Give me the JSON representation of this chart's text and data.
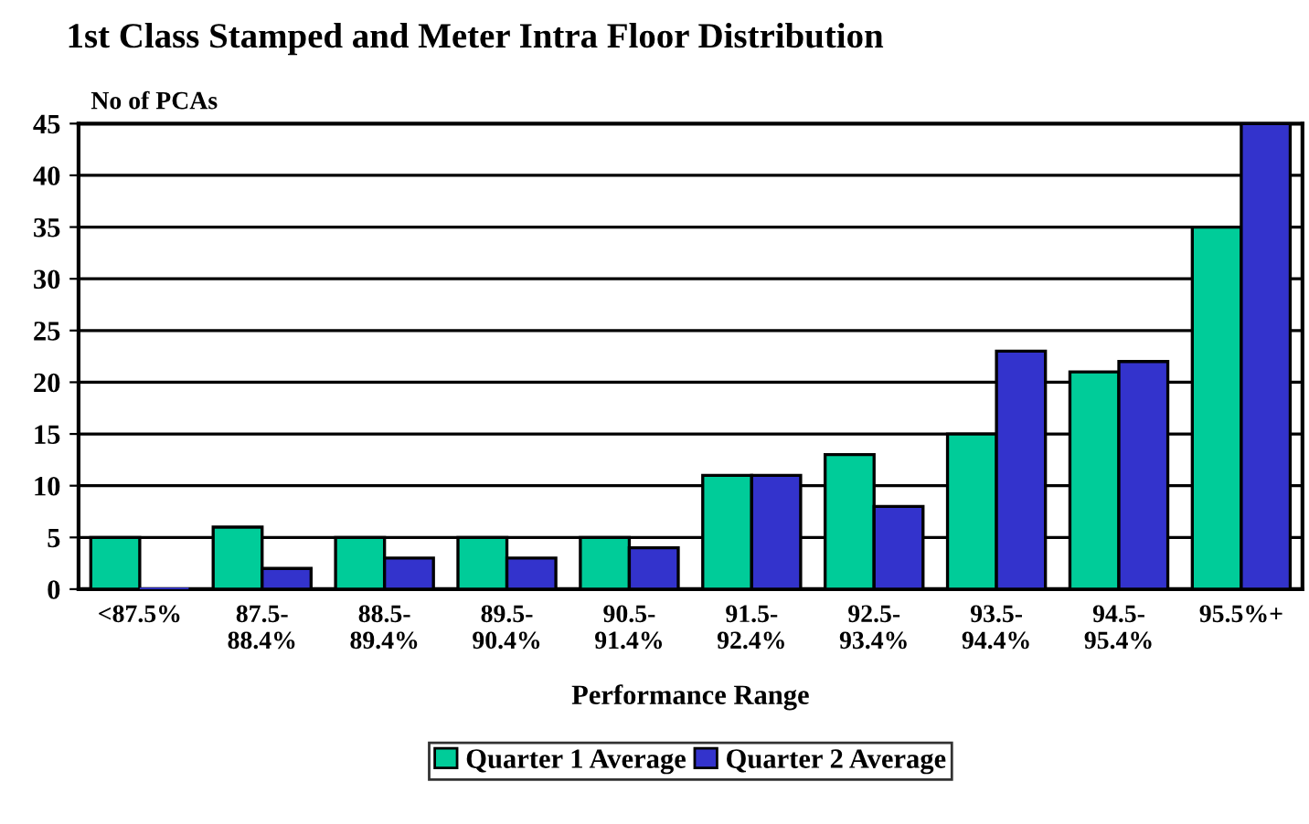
{
  "chart_data": {
    "type": "bar",
    "title": "1st Class Stamped and Meter Intra Floor Distribution",
    "ylabel": "No of PCAs",
    "xlabel": "Performance Range",
    "categories": [
      "<87.5%",
      "87.5-\n88.4%",
      "88.5-\n89.4%",
      "89.5-\n90.4%",
      "90.5-\n91.4%",
      "91.5-\n92.4%",
      "92.5-\n93.4%",
      "93.5-\n94.4%",
      "94.5-\n95.4%",
      "95.5%+"
    ],
    "series": [
      {
        "name": "Quarter 1 Average",
        "color": "#00cc99",
        "values": [
          5,
          6,
          5,
          5,
          5,
          11,
          13,
          15,
          21,
          35
        ]
      },
      {
        "name": "Quarter 2 Average",
        "color": "#3333cc",
        "values": [
          0,
          2,
          3,
          3,
          4,
          11,
          8,
          23,
          22,
          45
        ]
      }
    ],
    "ylim": [
      0,
      45
    ],
    "yticks": [
      0,
      5,
      10,
      15,
      20,
      25,
      30,
      35,
      40,
      45
    ],
    "grid": "y",
    "legend": "bottom"
  }
}
